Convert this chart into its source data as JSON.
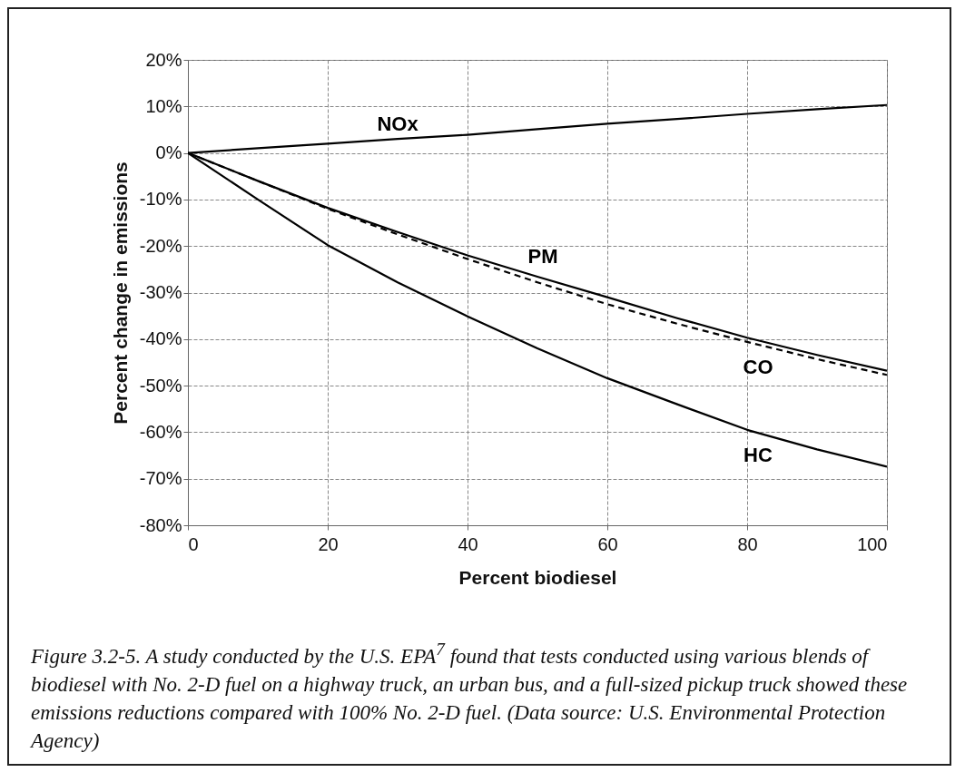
{
  "chart_data": {
    "type": "line",
    "xlabel": "Percent biodiesel",
    "ylabel": "Percent change in emissions",
    "x": [
      0,
      10,
      20,
      30,
      40,
      50,
      60,
      70,
      80,
      90,
      100
    ],
    "series": [
      {
        "name": "NOx",
        "color": "#000000",
        "line_style": "solid",
        "values": [
          0,
          1,
          2,
          3,
          3.9,
          5.1,
          6.3,
          7.3,
          8.4,
          9.4,
          10.3
        ]
      },
      {
        "name": "PM",
        "color": "#000000",
        "line_style": "solid",
        "values": [
          0,
          -6,
          -11.8,
          -17,
          -22,
          -26.6,
          -31,
          -35.5,
          -39.7,
          -43.4,
          -46.8
        ]
      },
      {
        "name": "CO",
        "color": "#000000",
        "line_style": "dashed",
        "values": [
          0,
          -6,
          -12,
          -17.5,
          -22.8,
          -27.8,
          -32.5,
          -36.7,
          -40.6,
          -44.3,
          -47.7
        ]
      },
      {
        "name": "HC",
        "color": "#000000",
        "line_style": "solid",
        "values": [
          0,
          -10,
          -19.8,
          -27.8,
          -35.1,
          -42,
          -48.4,
          -54,
          -59.5,
          -63.7,
          -67.4
        ]
      }
    ],
    "xlim": [
      0,
      100
    ],
    "xticks": [
      0,
      20,
      40,
      60,
      80,
      100
    ],
    "ylim": [
      -80,
      20
    ],
    "yticks": [
      {
        "value": 20,
        "label": "20%"
      },
      {
        "value": 10,
        "label": "10%"
      },
      {
        "value": 0,
        "label": "0%"
      },
      {
        "value": -10,
        "label": "-10%"
      },
      {
        "value": -20,
        "label": "-20%"
      },
      {
        "value": -30,
        "label": "-30%"
      },
      {
        "value": -40,
        "label": "-40%"
      },
      {
        "value": -50,
        "label": "-50%"
      },
      {
        "value": -60,
        "label": "-60%"
      },
      {
        "value": -70,
        "label": "-70%"
      },
      {
        "value": -80,
        "label": "-80%"
      }
    ],
    "grid": true,
    "marker": "none",
    "annotations": [
      "Figure 3.2-5. A study conducted by the U.S. EPA$^{7}$ found that tests conducted using various blends of biodiesel with No. 2-D fuel on a highway truck, an urban bus, and a full-sized pickup truck showed these emissions reductions compared with 100% No. 2-D fuel. (Data source: U.S. Environmental Protection Agency)"
    ]
  }
}
